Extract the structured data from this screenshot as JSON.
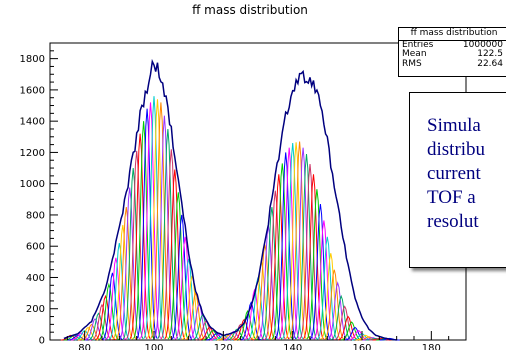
{
  "title": "ff mass distribution",
  "stats": {
    "name": "ff mass distribution",
    "rows": [
      {
        "key": "Entries",
        "value": "1000000"
      },
      {
        "key": "Mean",
        "value": "122.5"
      },
      {
        "key": "RMS",
        "value": "22.64"
      }
    ]
  },
  "note": {
    "lines": [
      "Simula",
      "distribu",
      "current",
      "TOF a",
      "resolut"
    ]
  },
  "colors": {
    "envelope": "#00007f",
    "axis": "#000000",
    "series_palette": [
      "#ff0000",
      "#00cc00",
      "#0000ff",
      "#ff00ff",
      "#00cccc",
      "#ffcc00",
      "#ff8800",
      "#9933ff",
      "#00aa66",
      "#cc3366"
    ]
  },
  "chart_data": {
    "type": "line",
    "title": "ff mass distribution",
    "xlabel": "",
    "ylabel": "",
    "xlim": [
      70,
      190
    ],
    "ylim": [
      0,
      1900
    ],
    "x_ticks": [
      "80",
      "100",
      "120",
      "140",
      "160",
      "180"
    ],
    "y_ticks": [
      "0",
      "200",
      "400",
      "600",
      "800",
      "1000",
      "1200",
      "1400",
      "1600",
      "1800"
    ],
    "envelope": {
      "x": [
        74,
        78,
        82,
        86,
        90,
        94,
        96,
        98,
        100,
        102,
        104,
        106,
        108,
        110,
        112,
        114,
        116,
        118,
        120,
        122,
        124,
        126,
        128,
        130,
        132,
        134,
        136,
        138,
        140,
        142,
        144,
        146,
        148,
        150,
        152,
        154,
        156,
        158,
        160,
        162,
        164,
        166,
        168,
        170
      ],
      "y": [
        10,
        40,
        120,
        330,
        710,
        1180,
        1430,
        1620,
        1780,
        1690,
        1490,
        1180,
        870,
        560,
        320,
        170,
        90,
        50,
        30,
        40,
        60,
        110,
        210,
        380,
        620,
        900,
        1180,
        1430,
        1600,
        1680,
        1690,
        1630,
        1490,
        1270,
        1000,
        720,
        470,
        270,
        140,
        70,
        30,
        15,
        5,
        0
      ]
    },
    "component_peaks": {
      "x": [
        78,
        80,
        82,
        84,
        86,
        88,
        90,
        92,
        94,
        96,
        98,
        100,
        102,
        104,
        106,
        108,
        110,
        112,
        114,
        116,
        118,
        120,
        122,
        124,
        126,
        128,
        130,
        132,
        134,
        136,
        138,
        140,
        142,
        144,
        146,
        148,
        150,
        152,
        154,
        156,
        158,
        160,
        162,
        164
      ],
      "y": [
        30,
        60,
        100,
        170,
        280,
        430,
        620,
        850,
        1100,
        1320,
        1480,
        1560,
        1520,
        1350,
        1090,
        800,
        520,
        300,
        160,
        80,
        40,
        30,
        40,
        70,
        130,
        240,
        400,
        610,
        850,
        1060,
        1200,
        1260,
        1270,
        1190,
        1060,
        870,
        660,
        450,
        280,
        150,
        80,
        40,
        20,
        10
      ]
    }
  }
}
